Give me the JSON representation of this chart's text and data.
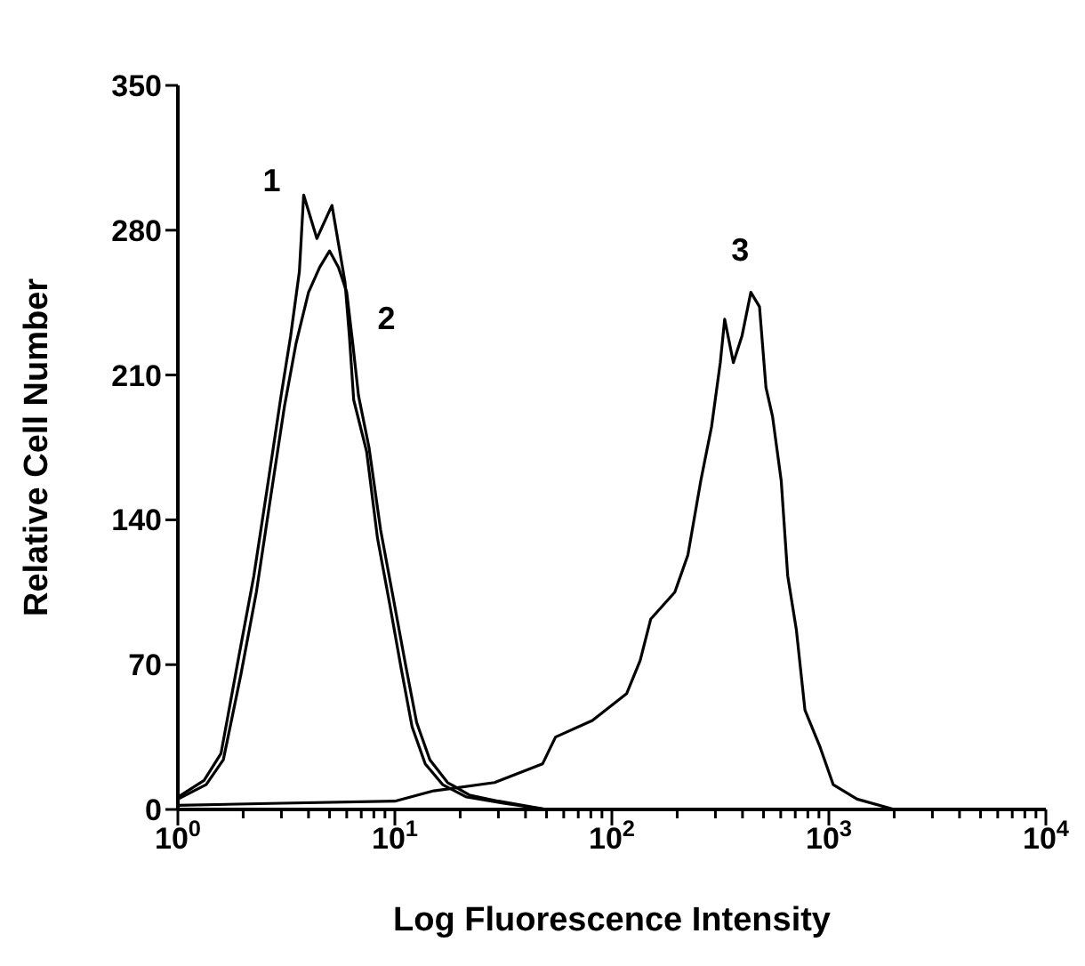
{
  "chart_data": {
    "type": "line",
    "xlabel": "Log Fluorescence Intensity",
    "ylabel": "Relative Cell Number",
    "log": "x",
    "xlim": [
      1,
      10000
    ],
    "xticks": [
      {
        "value": 1,
        "label": "10$^{0}$"
      },
      {
        "value": 2,
        "label": null
      },
      {
        "value": 3,
        "label": null
      },
      {
        "value": 4,
        "label": null
      },
      {
        "value": 5,
        "label": null
      },
      {
        "value": 6,
        "label": null
      },
      {
        "value": 7,
        "label": null
      },
      {
        "value": 8,
        "label": null
      },
      {
        "value": 9,
        "label": null
      },
      {
        "value": 10,
        "label": "10$^{1}$"
      },
      {
        "value": 20,
        "label": null
      },
      {
        "value": 30,
        "label": null
      },
      {
        "value": 40,
        "label": null
      },
      {
        "value": 50,
        "label": null
      },
      {
        "value": 60,
        "label": null
      },
      {
        "value": 70,
        "label": null
      },
      {
        "value": 80,
        "label": null
      },
      {
        "value": 90,
        "label": null
      },
      {
        "value": 100,
        "label": "10$^{2}$"
      },
      {
        "value": 200,
        "label": null
      },
      {
        "value": 300,
        "label": null
      },
      {
        "value": 400,
        "label": null
      },
      {
        "value": 500,
        "label": null
      },
      {
        "value": 600,
        "label": null
      },
      {
        "value": 700,
        "label": null
      },
      {
        "value": 800,
        "label": null
      },
      {
        "value": 900,
        "label": null
      },
      {
        "value": 1000,
        "label": "10$^{3}$"
      },
      {
        "value": 2000,
        "label": null
      },
      {
        "value": 3000,
        "label": null
      },
      {
        "value": 4000,
        "label": null
      },
      {
        "value": 5000,
        "label": null
      },
      {
        "value": 6000,
        "label": null
      },
      {
        "value": 7000,
        "label": null
      },
      {
        "value": 8000,
        "label": null
      },
      {
        "value": 9000,
        "label": null
      },
      {
        "value": 10000,
        "label": "10$^{4}$"
      }
    ],
    "ylim": [
      0,
      350
    ],
    "yticks": [
      0,
      70,
      140,
      210,
      280,
      350
    ],
    "grid": false,
    "legend": false,
    "marker": "none",
    "line_style": "solid",
    "series": [
      {
        "name": "1",
        "color": "#000000",
        "x": [
          1,
          1.32,
          1.58,
          1.91,
          2.24,
          2.57,
          2.99,
          3.31,
          3.63,
          3.8,
          4.37,
          5.13,
          5.89,
          6.17,
          6.46,
          7.41,
          8.32,
          9.44,
          10.7,
          12,
          13.8,
          16.6,
          21.4,
          31.6,
          50
        ],
        "values": [
          6,
          14,
          27,
          74,
          113,
          154,
          200,
          229,
          260,
          297,
          276,
          292,
          255,
          229,
          198,
          173,
          131,
          100,
          68,
          40,
          22,
          12,
          6,
          3,
          0
        ]
      },
      {
        "name": "2",
        "color": "#000000",
        "x": [
          1,
          1.35,
          1.62,
          1.95,
          2.3,
          2.65,
          3.1,
          3.5,
          4,
          4.5,
          5,
          5.5,
          6,
          6.4,
          6.8,
          7.6,
          8.6,
          9.8,
          11.2,
          12.6,
          14.5,
          17.5,
          22,
          30,
          50
        ],
        "values": [
          5,
          12,
          24,
          65,
          105,
          148,
          195,
          225,
          250,
          262,
          270,
          262,
          250,
          225,
          200,
          175,
          135,
          103,
          70,
          42,
          24,
          13,
          7,
          4,
          0
        ]
      },
      {
        "name": "3",
        "color": "#000000",
        "x": [
          1,
          3,
          10,
          15.1,
          28.8,
          47.9,
          55,
          81.3,
          117,
          135,
          151,
          195,
          224,
          257,
          288,
          316,
          331,
          363,
          398,
          437,
          479,
          513,
          550,
          603,
          646,
          708,
          776,
          912,
          1047,
          1349,
          2000
        ],
        "values": [
          2,
          3,
          4,
          9,
          13,
          22,
          35,
          43,
          56,
          72,
          92,
          105,
          123,
          159,
          185,
          216,
          237,
          216,
          229,
          250,
          243,
          204,
          190,
          159,
          113,
          87,
          48,
          30,
          12,
          5,
          0
        ]
      }
    ]
  }
}
